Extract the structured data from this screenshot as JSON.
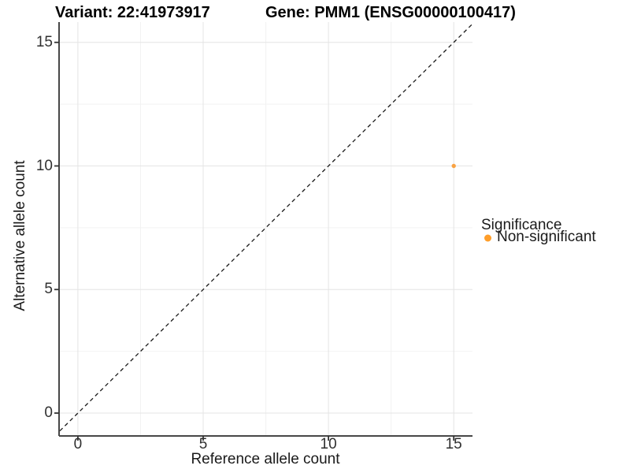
{
  "titles": {
    "variant": "Variant: 22:41973917",
    "gene": "Gene: PMM1 (ENSG00000100417)"
  },
  "chart_data": {
    "type": "scatter",
    "xlabel": "Reference allele count",
    "ylabel": "Alternative allele count",
    "xlim": [
      -0.75,
      15.75
    ],
    "ylim": [
      -0.75,
      15.75
    ],
    "x_ticks": [
      0,
      5,
      10,
      15
    ],
    "y_ticks": [
      0,
      5,
      10,
      15
    ],
    "x_tick_labels": [
      "0",
      "5",
      "10",
      "15"
    ],
    "y_tick_labels": [
      "0",
      "5",
      "10",
      "15"
    ],
    "grid": "major+minor",
    "points": [
      {
        "x": 15,
        "y": 10,
        "series": "Non-significant"
      }
    ],
    "identity_line": {
      "type": "abline y=x",
      "style": "dashed",
      "from": [
        -0.72,
        -0.72
      ],
      "to": [
        15.73,
        15.73
      ]
    },
    "legend": {
      "position": "right",
      "title": "Significance",
      "entries": [
        {
          "label": "Non-significant",
          "color": "#FF9E2A"
        }
      ]
    }
  },
  "colors": {
    "point": "#F9A242",
    "legend_dot": "#FF9E2A",
    "axis_line": "#474747",
    "tick_mark": "#333333",
    "grid_major": "#E4E4E4",
    "grid_minor": "#F2F2F2",
    "diagonal": "#1A1A1A",
    "background": "#FFFFFF"
  }
}
